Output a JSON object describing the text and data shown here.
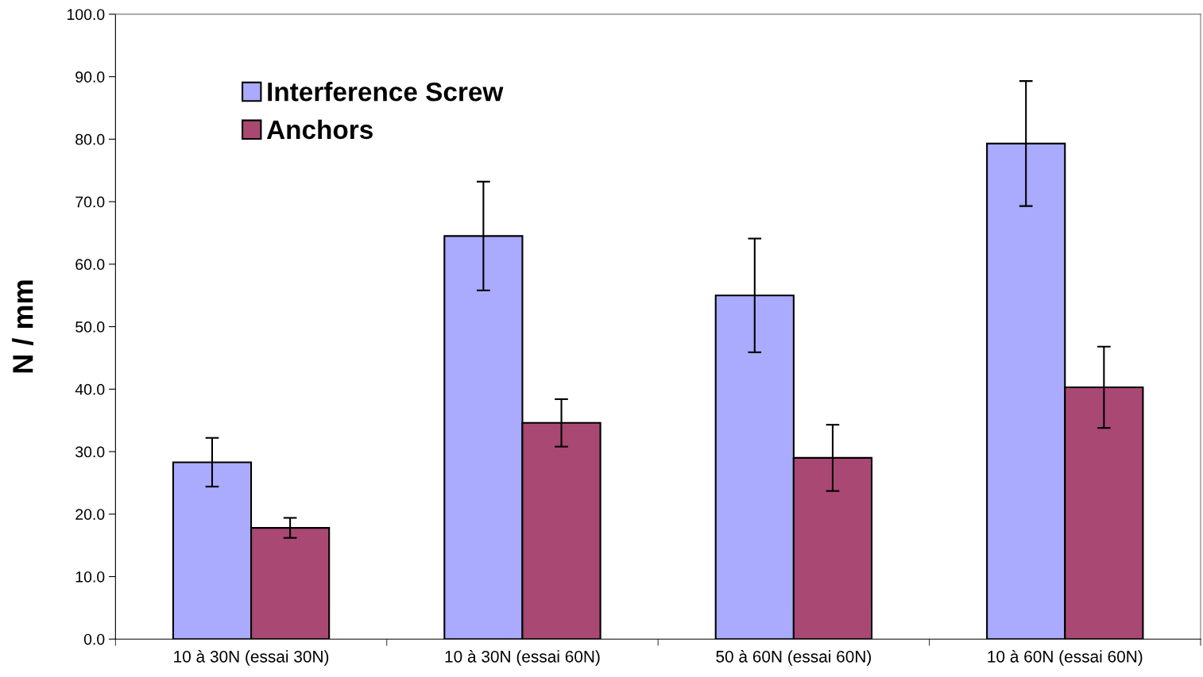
{
  "chart_data": {
    "type": "bar",
    "ylabel": "N / mm",
    "categories": [
      "10 à 30N (essai 30N)",
      "10 à 30N (essai 60N)",
      "50 à 60N (essai 60N)",
      "10 à 60N (essai 60N)"
    ],
    "series": [
      {
        "name": "Interference Screw",
        "color": "#aaaaff",
        "values": [
          28.3,
          64.5,
          55.0,
          79.3
        ],
        "errors": [
          3.9,
          8.7,
          9.1,
          10.0
        ]
      },
      {
        "name": "Anchors",
        "color": "#a94873",
        "values": [
          17.8,
          34.6,
          29.0,
          40.3
        ],
        "errors": [
          1.6,
          3.8,
          5.3,
          6.5
        ]
      }
    ],
    "ylim": [
      0,
      100
    ],
    "yticks": [
      {
        "value": 0,
        "label": "0.0"
      },
      {
        "value": 10,
        "label": "10.0"
      },
      {
        "value": 20,
        "label": "20.0"
      },
      {
        "value": 30,
        "label": "30.0"
      },
      {
        "value": 40,
        "label": "40.0"
      },
      {
        "value": 50,
        "label": "50.0"
      },
      {
        "value": 60,
        "label": "60.0"
      },
      {
        "value": 70,
        "label": "70.0"
      },
      {
        "value": 80,
        "label": "80.0"
      },
      {
        "value": 90,
        "label": "90.0"
      },
      {
        "value": 100,
        "label": "100.0"
      }
    ],
    "grid": false,
    "legend": "top left"
  }
}
